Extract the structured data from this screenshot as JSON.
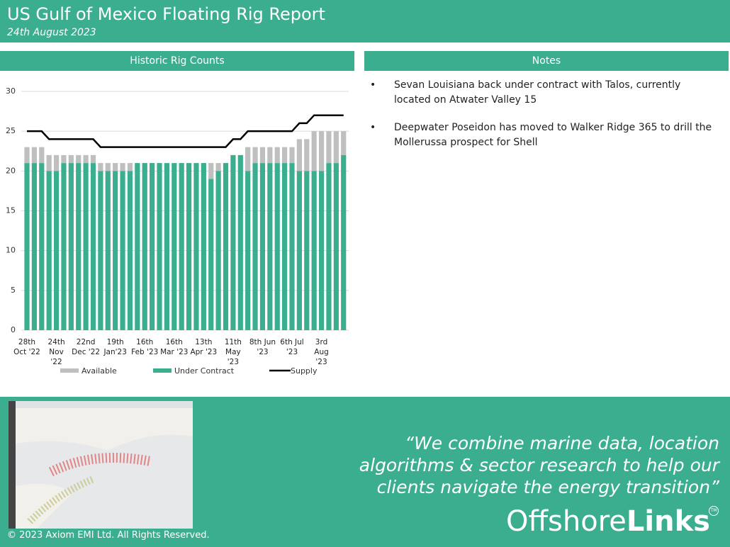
{
  "header": {
    "title": "US Gulf of Mexico Floating Rig Report",
    "date": "24th August 2023"
  },
  "chart_data": {
    "type": "bar",
    "title": "Historic Rig Counts",
    "categories": [
      "28th Oct '22",
      null,
      null,
      null,
      "24th Nov '22",
      null,
      null,
      null,
      "22nd Dec '22",
      null,
      null,
      null,
      "19th Jan'23",
      null,
      null,
      null,
      "16th Feb '23",
      null,
      null,
      null,
      "16th Mar '23",
      null,
      null,
      null,
      "13th Apr '23",
      null,
      null,
      null,
      "11th May '23",
      null,
      null,
      null,
      "8th Jun '23",
      null,
      null,
      null,
      "6th Jul '23",
      null,
      null,
      null,
      "3rd Aug '23",
      null,
      null,
      null
    ],
    "series": [
      {
        "name": "Available",
        "type": "bar",
        "color": "#bfbfbf",
        "values": [
          2,
          2,
          2,
          2,
          2,
          1,
          1,
          1,
          1,
          1,
          1,
          1,
          1,
          1,
          1,
          0,
          0,
          0,
          0,
          0,
          0,
          0,
          0,
          0,
          0,
          2,
          1,
          0,
          0,
          0,
          3,
          2,
          2,
          2,
          2,
          2,
          2,
          4,
          4,
          5,
          5,
          4,
          4,
          3
        ]
      },
      {
        "name": "Under Contract",
        "type": "bar",
        "color": "#3aae8e",
        "values": [
          21,
          21,
          21,
          20,
          20,
          21,
          21,
          21,
          21,
          21,
          20,
          20,
          20,
          20,
          20,
          21,
          21,
          21,
          21,
          21,
          21,
          21,
          21,
          21,
          21,
          19,
          20,
          21,
          22,
          22,
          20,
          21,
          21,
          21,
          21,
          21,
          21,
          20,
          20,
          20,
          20,
          21,
          21,
          22
        ]
      },
      {
        "name": "Supply",
        "type": "line",
        "color": "#000000",
        "values": [
          25,
          25,
          25,
          24,
          24,
          24,
          24,
          24,
          24,
          24,
          23,
          23,
          23,
          23,
          23,
          23,
          23,
          23,
          23,
          23,
          23,
          23,
          23,
          23,
          23,
          23,
          23,
          23,
          24,
          24,
          25,
          25,
          25,
          25,
          25,
          25,
          25,
          26,
          26,
          27,
          27,
          27,
          27,
          27
        ]
      }
    ],
    "ylim": [
      0,
      30
    ],
    "yticks": [
      0,
      5,
      10,
      15,
      20,
      25,
      30
    ],
    "grid": true,
    "legend": "bottom"
  },
  "notes": {
    "title": "Notes",
    "bullet": "•",
    "items": [
      "Sevan Louisiana back under contract with Talos, currently located on Atwater Valley 15",
      "Deepwater Poseidon has moved to Walker Ridge 365 to drill the Mollerussa prospect for Shell"
    ]
  },
  "footer": {
    "quote": "“We  combine marine data, location algorithms & sector research to help our clients navigate the energy transition”",
    "logo_light": "Offshore",
    "logo_bold": "Links",
    "trademark": "TM",
    "copyright": "© 2023 Axiom EMI Ltd. All Rights Reserved."
  }
}
